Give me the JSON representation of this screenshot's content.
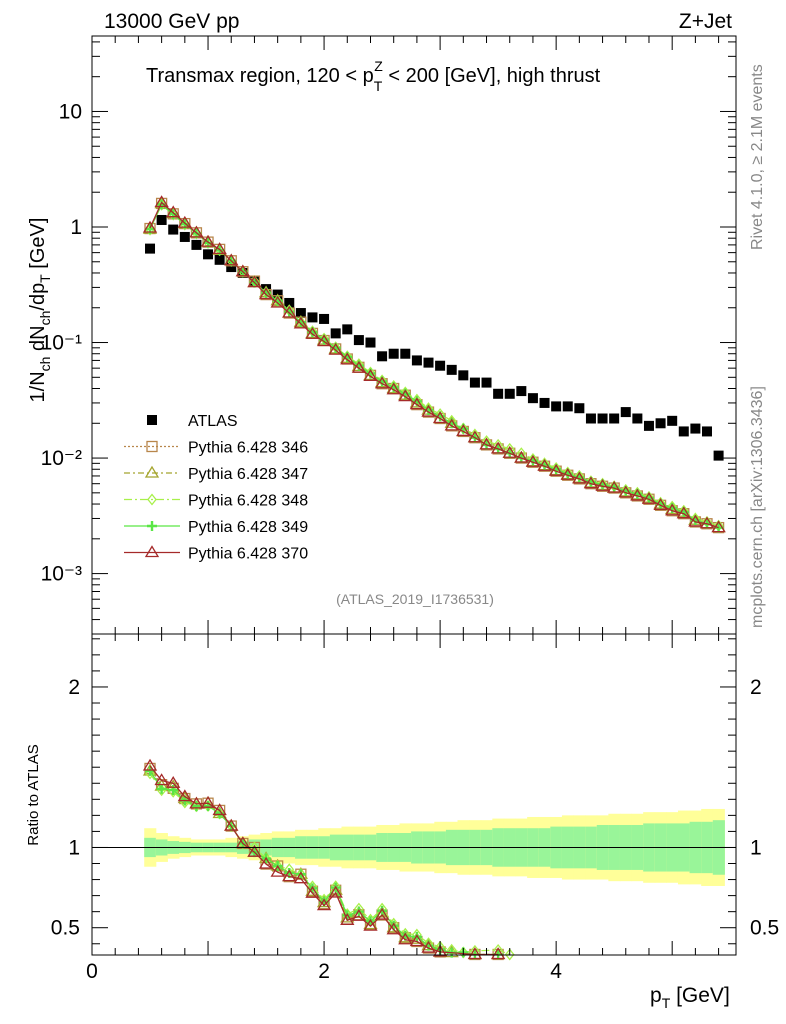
{
  "header": {
    "energy_label": "13000 GeV pp",
    "process_label": "Z+Jet"
  },
  "side_text": {
    "rivet": "Rivet 4.1.0, ≥ 2.1M events",
    "mcplots": "mcplots.cern.ch [arXiv:1306.3436]"
  },
  "chart_data": {
    "type": "scatter",
    "title": "Transmax region, 120 < p_T^Z < 200 [GeV], high thrust",
    "analysis_tag": "(ATLAS_2019_I1736531)",
    "xlabel": "p_T [GeV]",
    "ylabel": "1/N_ch dN_ch/dp_T [GeV]",
    "ratio_ylabel": "Ratio to ATLAS",
    "xlim": [
      0,
      5.55
    ],
    "ylim": [
      0.0003,
      45
    ],
    "yscale": "log",
    "ratio_ylim": [
      0.33,
      2.33
    ],
    "x_ticks": [
      0,
      2,
      4
    ],
    "y_ticks": [
      {
        "value": 10,
        "label": "10"
      },
      {
        "value": 1,
        "label": "1"
      },
      {
        "value": 0.1,
        "label": "10⁻¹"
      },
      {
        "value": 0.01,
        "label": "10⁻²"
      },
      {
        "value": 0.001,
        "label": "10⁻³"
      }
    ],
    "ratio_ticks": [
      {
        "value": 0.5,
        "label": "0.5"
      },
      {
        "value": 1,
        "label": "1"
      },
      {
        "value": 2,
        "label": "2"
      }
    ],
    "x": [
      0.5,
      0.6,
      0.7,
      0.8,
      0.9,
      1.0,
      1.1,
      1.2,
      1.3,
      1.4,
      1.5,
      1.6,
      1.7,
      1.8,
      1.9,
      2.0,
      2.1,
      2.2,
      2.3,
      2.4,
      2.5,
      2.6,
      2.7,
      2.8,
      2.9,
      3.0,
      3.1,
      3.2,
      3.3,
      3.4,
      3.5,
      3.6,
      3.7,
      3.8,
      3.9,
      4.0,
      4.1,
      4.2,
      4.3,
      4.4,
      4.5,
      4.6,
      4.7,
      4.8,
      4.9,
      5.0,
      5.1,
      5.2,
      5.3,
      5.4
    ],
    "legend": {
      "placement": "left-center"
    },
    "series": [
      {
        "name": "ATLAS",
        "marker": "filled-square",
        "color": "#000000",
        "values": [
          0.65,
          1.15,
          0.95,
          0.82,
          0.7,
          0.58,
          0.52,
          0.45,
          0.4,
          0.34,
          0.29,
          0.26,
          0.22,
          0.18,
          0.165,
          0.16,
          0.12,
          0.13,
          0.105,
          0.1,
          0.076,
          0.08,
          0.08,
          0.07,
          0.067,
          0.063,
          0.058,
          0.052,
          0.045,
          0.045,
          0.036,
          0.036,
          0.038,
          0.033,
          0.03,
          0.028,
          0.028,
          0.027,
          0.022,
          0.022,
          0.022,
          0.025,
          0.022,
          0.019,
          0.02,
          0.021,
          0.017,
          0.018,
          0.017,
          0.0105
        ]
      },
      {
        "name": "Pythia 6.428 346",
        "marker": "open-square",
        "color": "#b8864b",
        "values": [
          0.97,
          1.6,
          1.3,
          1.07,
          0.89,
          0.74,
          0.64,
          0.51,
          0.41,
          0.34,
          0.26,
          0.23,
          0.18,
          0.15,
          0.12,
          0.104,
          0.088,
          0.072,
          0.061,
          0.052,
          0.044,
          0.04,
          0.035,
          0.029,
          0.025,
          0.022,
          0.019,
          0.017,
          0.015,
          0.013,
          0.012,
          0.011,
          0.01,
          0.0092,
          0.0085,
          0.0077,
          0.0071,
          0.0066,
          0.006,
          0.0057,
          0.0055,
          0.005,
          0.0047,
          0.0044,
          0.0039,
          0.0035,
          0.0033,
          0.0028,
          0.0027,
          0.0025
        ]
      },
      {
        "name": "Pythia 6.428 347",
        "marker": "open-triangle",
        "color": "#a5a52f",
        "values": [
          0.96,
          1.59,
          1.31,
          1.07,
          0.89,
          0.74,
          0.63,
          0.51,
          0.41,
          0.33,
          0.27,
          0.23,
          0.18,
          0.15,
          0.12,
          0.105,
          0.088,
          0.073,
          0.062,
          0.052,
          0.045,
          0.04,
          0.035,
          0.03,
          0.026,
          0.022,
          0.02,
          0.017,
          0.015,
          0.013,
          0.012,
          0.011,
          0.01,
          0.0093,
          0.0086,
          0.0078,
          0.0072,
          0.0067,
          0.0061,
          0.0058,
          0.0055,
          0.0051,
          0.0048,
          0.0045,
          0.004,
          0.0036,
          0.0034,
          0.0029,
          0.0027,
          0.0025
        ]
      },
      {
        "name": "Pythia 6.428 348",
        "marker": "open-diamond",
        "color": "#a8f04a",
        "values": [
          0.95,
          1.56,
          1.28,
          1.05,
          0.88,
          0.73,
          0.63,
          0.51,
          0.41,
          0.34,
          0.27,
          0.23,
          0.19,
          0.15,
          0.125,
          0.108,
          0.091,
          0.076,
          0.065,
          0.055,
          0.047,
          0.042,
          0.037,
          0.032,
          0.027,
          0.024,
          0.021,
          0.018,
          0.016,
          0.014,
          0.013,
          0.012,
          0.011,
          0.0098,
          0.009,
          0.0082,
          0.0075,
          0.007,
          0.0063,
          0.006,
          0.0057,
          0.0053,
          0.005,
          0.0046,
          0.0041,
          0.0038,
          0.0035,
          0.003,
          0.0028,
          0.0026
        ]
      },
      {
        "name": "Pythia 6.428 349",
        "marker": "cross",
        "color": "#5ae645",
        "values": [
          0.96,
          1.57,
          1.29,
          1.06,
          0.88,
          0.73,
          0.63,
          0.51,
          0.41,
          0.33,
          0.27,
          0.23,
          0.185,
          0.15,
          0.123,
          0.106,
          0.09,
          0.075,
          0.063,
          0.054,
          0.046,
          0.041,
          0.036,
          0.031,
          0.026,
          0.023,
          0.02,
          0.018,
          0.015,
          0.013,
          0.012,
          0.011,
          0.01,
          0.0095,
          0.0087,
          0.008,
          0.0073,
          0.0068,
          0.0062,
          0.0059,
          0.0056,
          0.0052,
          0.0049,
          0.0045,
          0.004,
          0.0037,
          0.0034,
          0.0029,
          0.0027,
          0.0025
        ]
      },
      {
        "name": "Pythia 6.428 370",
        "marker": "open-triangle",
        "color": "#a52a2a",
        "values": [
          0.98,
          1.63,
          1.33,
          1.08,
          0.89,
          0.74,
          0.64,
          0.51,
          0.41,
          0.33,
          0.26,
          0.22,
          0.18,
          0.145,
          0.118,
          0.102,
          0.086,
          0.071,
          0.06,
          0.051,
          0.044,
          0.039,
          0.034,
          0.029,
          0.025,
          0.022,
          0.019,
          0.017,
          0.015,
          0.013,
          0.012,
          0.011,
          0.01,
          0.0092,
          0.0085,
          0.0077,
          0.0071,
          0.0066,
          0.006,
          0.0057,
          0.0055,
          0.005,
          0.0047,
          0.0044,
          0.0039,
          0.0035,
          0.0033,
          0.0028,
          0.0027,
          0.0025
        ]
      }
    ],
    "ratio_band_inner": [
      0.06,
      0.05,
      0.04,
      0.035,
      0.03,
      0.03,
      0.03,
      0.03,
      0.04,
      0.05,
      0.05,
      0.06,
      0.06,
      0.07,
      0.07,
      0.07,
      0.08,
      0.08,
      0.08,
      0.08,
      0.09,
      0.09,
      0.09,
      0.1,
      0.1,
      0.1,
      0.11,
      0.11,
      0.11,
      0.11,
      0.12,
      0.12,
      0.12,
      0.12,
      0.12,
      0.13,
      0.13,
      0.13,
      0.13,
      0.14,
      0.14,
      0.14,
      0.14,
      0.15,
      0.15,
      0.15,
      0.15,
      0.16,
      0.16,
      0.17
    ],
    "ratio_band_outer": [
      0.12,
      0.09,
      0.07,
      0.06,
      0.05,
      0.05,
      0.05,
      0.06,
      0.07,
      0.08,
      0.09,
      0.1,
      0.1,
      0.11,
      0.11,
      0.12,
      0.12,
      0.13,
      0.13,
      0.13,
      0.14,
      0.14,
      0.15,
      0.15,
      0.15,
      0.16,
      0.16,
      0.17,
      0.17,
      0.17,
      0.18,
      0.18,
      0.18,
      0.19,
      0.19,
      0.19,
      0.2,
      0.2,
      0.2,
      0.2,
      0.21,
      0.21,
      0.21,
      0.22,
      0.22,
      0.22,
      0.23,
      0.23,
      0.24,
      0.24
    ]
  }
}
